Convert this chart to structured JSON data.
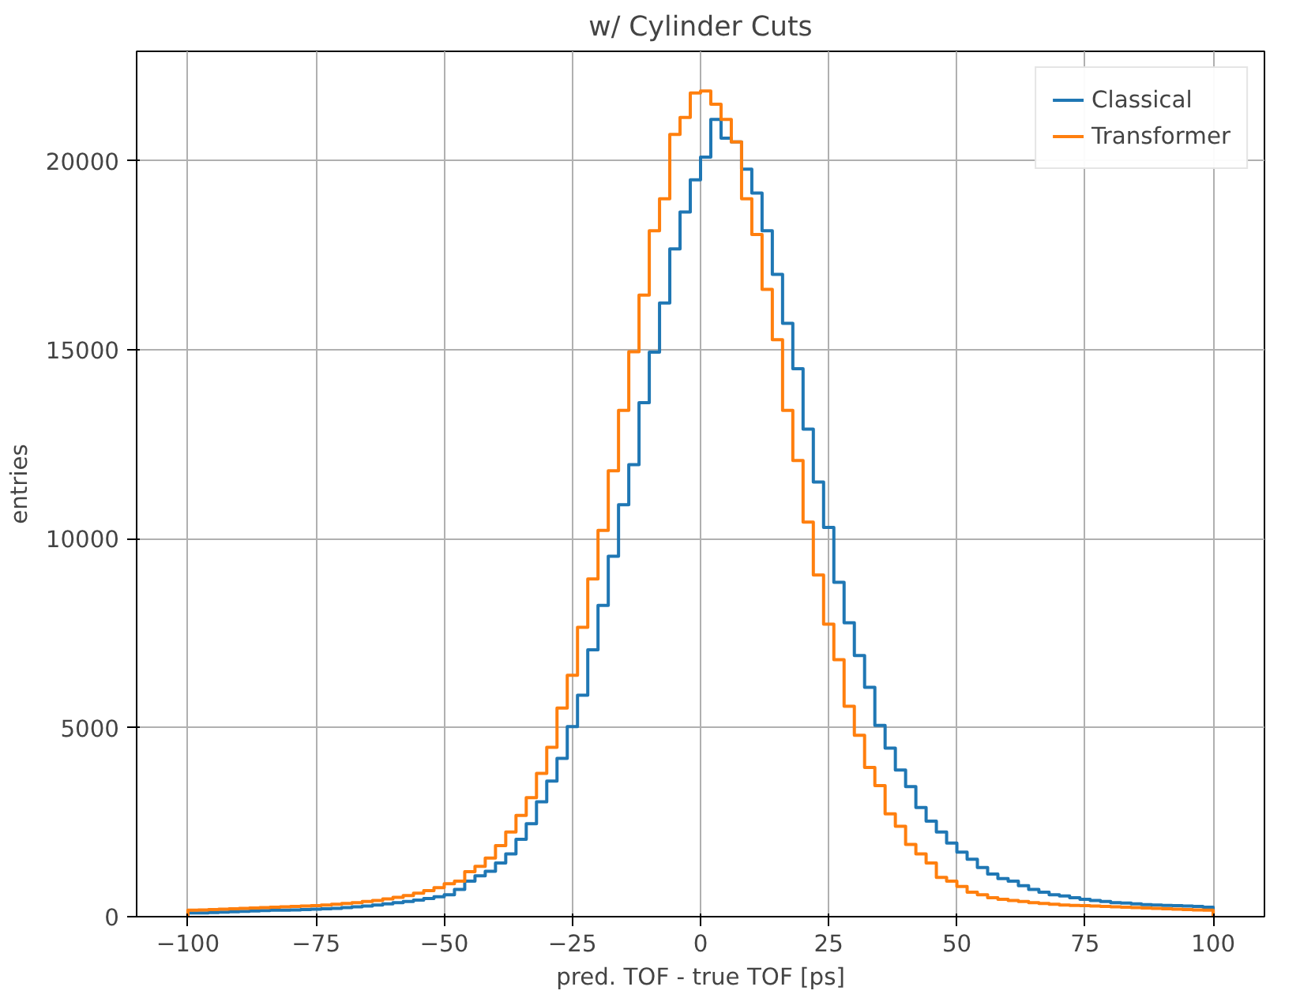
{
  "chart_data": {
    "type": "histogram",
    "title": "w/ Cylinder Cuts",
    "xlabel": "pred. TOF - true TOF [ps]",
    "ylabel": "entries",
    "bins": [
      -100,
      -98,
      -96,
      -94,
      -92,
      -90,
      -88,
      -86,
      -84,
      -82,
      -80,
      -78,
      -76,
      -74,
      -72,
      -70,
      -68,
      -66,
      -64,
      -62,
      -60,
      -58,
      -56,
      -54,
      -52,
      -50,
      -48,
      -46,
      -44,
      -42,
      -40,
      -38,
      -36,
      -34,
      -32,
      -30,
      -28,
      -26,
      -24,
      -22,
      -20,
      -18,
      -16,
      -14,
      -12,
      -10,
      -8,
      -6,
      -4,
      -2,
      0,
      2,
      4,
      6,
      8,
      10,
      12,
      14,
      16,
      18,
      20,
      22,
      24,
      26,
      28,
      30,
      32,
      34,
      36,
      38,
      40,
      42,
      44,
      46,
      48,
      50,
      52,
      54,
      56,
      58,
      60,
      62,
      64,
      66,
      68,
      70,
      72,
      74,
      76,
      78,
      80,
      82,
      84,
      86,
      88,
      90,
      92,
      94,
      96,
      98,
      100
    ],
    "series": [
      {
        "name": "Classical",
        "color": "#1f77b4",
        "values": [
          100,
          100,
          110,
          120,
          130,
          140,
          150,
          160,
          170,
          170,
          180,
          190,
          200,
          210,
          220,
          240,
          260,
          280,
          310,
          340,
          370,
          400,
          440,
          480,
          530,
          580,
          720,
          940,
          1080,
          1200,
          1420,
          1660,
          2050,
          2460,
          3040,
          3590,
          4190,
          5030,
          5860,
          7060,
          8240,
          9540,
          10900,
          11960,
          13600,
          14940,
          16240,
          17670,
          18650,
          19500,
          20100,
          21100,
          20600,
          20500,
          19780,
          19150,
          18150,
          17000,
          15700,
          14500,
          12900,
          11500,
          10300,
          8850,
          7780,
          6910,
          6070,
          5060,
          4460,
          3880,
          3440,
          2890,
          2530,
          2240,
          1950,
          1710,
          1520,
          1300,
          1130,
          1010,
          940,
          820,
          720,
          650,
          580,
          550,
          500,
          460,
          430,
          400,
          370,
          360,
          340,
          320,
          310,
          300,
          290,
          280,
          270,
          250
        ]
      },
      {
        "name": "Transformer",
        "color": "#ff7f0e",
        "values": [
          170,
          180,
          190,
          200,
          210,
          220,
          230,
          240,
          250,
          260,
          270,
          280,
          290,
          310,
          330,
          350,
          370,
          400,
          430,
          470,
          510,
          560,
          620,
          690,
          770,
          870,
          940,
          1190,
          1330,
          1550,
          1880,
          2240,
          2680,
          3150,
          3790,
          4480,
          5520,
          6390,
          7660,
          8940,
          10220,
          11800,
          13400,
          14950,
          16450,
          18150,
          19000,
          20700,
          21150,
          21800,
          21850,
          21500,
          21100,
          20500,
          19000,
          18050,
          16600,
          15270,
          13400,
          12070,
          10440,
          9040,
          7740,
          6800,
          5570,
          4800,
          3950,
          3470,
          2720,
          2390,
          1910,
          1660,
          1420,
          1040,
          940,
          800,
          650,
          580,
          500,
          460,
          430,
          400,
          370,
          350,
          330,
          310,
          300,
          290,
          280,
          270,
          260,
          250,
          240,
          230,
          220,
          210,
          200,
          190,
          180,
          170
        ]
      }
    ],
    "xlim": [
      -110,
      110
    ],
    "xticks": [
      -100,
      -75,
      -50,
      -25,
      0,
      25,
      50,
      75,
      100
    ],
    "ylim": [
      0,
      22900
    ],
    "yticks": [
      0,
      5000,
      10000,
      15000,
      20000
    ],
    "grid": true,
    "legend": "top right"
  }
}
